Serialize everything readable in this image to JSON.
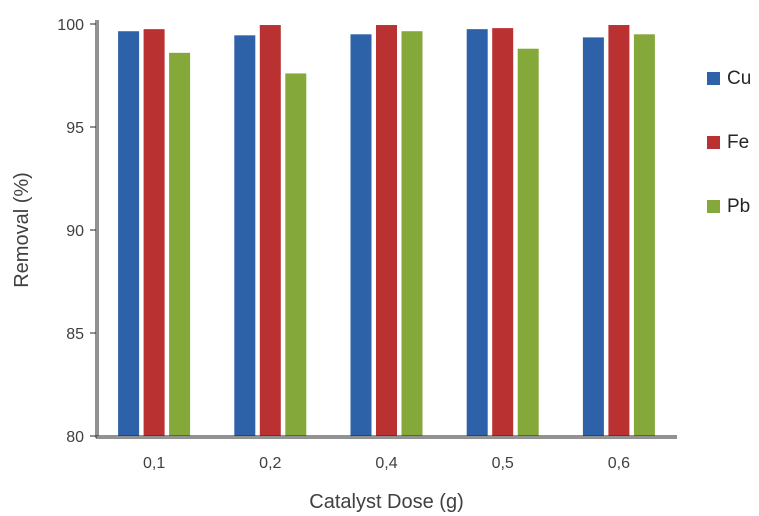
{
  "chart_data": {
    "type": "bar",
    "title": "",
    "xlabel": "Catalyst Dose (g)",
    "ylabel": "Removal (%)",
    "ylim": [
      80,
      100
    ],
    "yticks": [
      80,
      85,
      90,
      95,
      100
    ],
    "ytick_labels": [
      "80",
      "85",
      "90",
      "95",
      "100"
    ],
    "categories": [
      "0,1",
      "0,2",
      "0,4",
      "0,5",
      "0,6"
    ],
    "series": [
      {
        "name": "Cu",
        "color": "#2E62A8",
        "values": [
          99.65,
          99.45,
          99.5,
          99.75,
          99.35
        ]
      },
      {
        "name": "Fe",
        "color": "#B93131",
        "values": [
          99.75,
          99.95,
          99.95,
          99.8,
          99.95
        ]
      },
      {
        "name": "Pb",
        "color": "#84A93A",
        "values": [
          98.6,
          97.6,
          99.65,
          98.8,
          99.5
        ]
      }
    ],
    "grid": false,
    "legend_position": "right"
  }
}
